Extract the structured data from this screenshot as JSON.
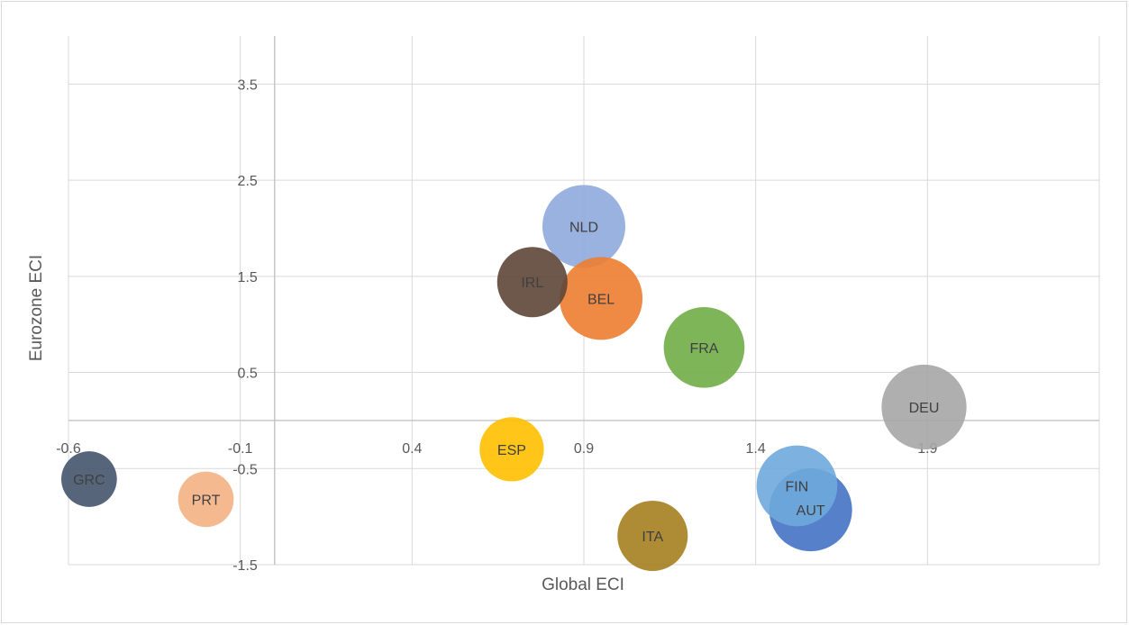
{
  "chart_data": {
    "type": "bubble",
    "title": "",
    "xlabel": "Global ECI",
    "ylabel": "Eurozone ECI",
    "xlim": [
      -0.6,
      2.4
    ],
    "ylim": [
      -1.5,
      4.0
    ],
    "x_ticks": [
      "-0.6",
      "-0.1",
      "0.4",
      "0.9",
      "1.4",
      "1.9"
    ],
    "y_ticks": [
      "-1.5",
      "-0.5",
      "0.5",
      "1.5",
      "2.5",
      "3.5"
    ],
    "grid": true,
    "legend": "none",
    "points": [
      {
        "label": "GRC",
        "x": -0.54,
        "y": -0.61,
        "size": 0.45,
        "color": "#44546a"
      },
      {
        "label": "PRT",
        "x": -0.2,
        "y": -0.82,
        "size": 0.45,
        "color": "#f4b183"
      },
      {
        "label": "ESP",
        "x": 0.69,
        "y": -0.3,
        "size": 0.6,
        "color": "#ffc000"
      },
      {
        "label": "IRL",
        "x": 0.75,
        "y": 1.44,
        "size": 0.72,
        "color": "#5e4637"
      },
      {
        "label": "NLD",
        "x": 0.9,
        "y": 2.02,
        "size": 1.0,
        "color": "#8faadc"
      },
      {
        "label": "BEL",
        "x": 0.95,
        "y": 1.27,
        "size": 1.0,
        "color": "#ed7d31"
      },
      {
        "label": "ITA",
        "x": 1.1,
        "y": -1.2,
        "size": 0.72,
        "color": "#a5801f"
      },
      {
        "label": "FRA",
        "x": 1.25,
        "y": 0.76,
        "size": 0.95,
        "color": "#70ad47"
      },
      {
        "label": "FIN",
        "x": 1.52,
        "y": -0.68,
        "size": 0.95,
        "color": "#6fa8dc"
      },
      {
        "label": "AUT",
        "x": 1.56,
        "y": -0.93,
        "size": 1.0,
        "color": "#4472c4"
      },
      {
        "label": "DEU",
        "x": 1.89,
        "y": 0.14,
        "size": 1.05,
        "color": "#a6a6a6"
      }
    ]
  }
}
